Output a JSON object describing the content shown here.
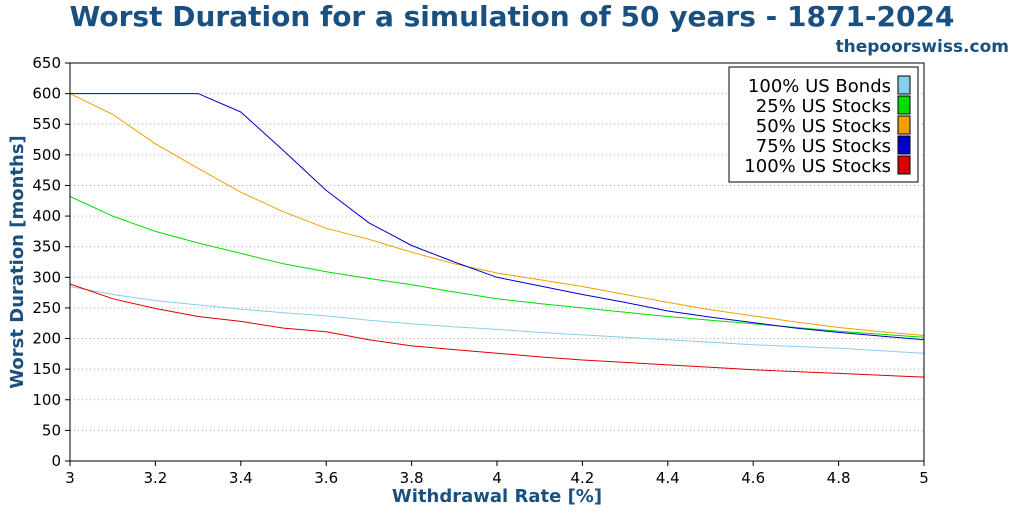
{
  "colors": {
    "title": "#1a5080",
    "grid": "#aaaaaa",
    "axis": "#000000"
  },
  "chart_data": {
    "type": "line",
    "title": "Worst Duration for a simulation of 50 years - 1871-2024",
    "subtitle": "thepoorswiss.com",
    "xlabel": "Withdrawal Rate [%]",
    "ylabel": "Worst Duration [months]",
    "xlim": [
      3,
      5
    ],
    "ylim": [
      0,
      650
    ],
    "xticks": [
      3,
      3.2,
      3.4,
      3.6,
      3.8,
      4,
      4.2,
      4.4,
      4.6,
      4.8,
      5
    ],
    "xtick_labels": [
      "3",
      "3.2",
      "3.4",
      "3.6",
      "3.8",
      "4",
      "4.2",
      "4.4",
      "4.6",
      "4.8",
      "5"
    ],
    "yticks": [
      0,
      50,
      100,
      150,
      200,
      250,
      300,
      350,
      400,
      450,
      500,
      550,
      600,
      650
    ],
    "ytick_labels": [
      "0",
      "50",
      "100",
      "150",
      "200",
      "250",
      "300",
      "350",
      "400",
      "450",
      "500",
      "550",
      "600",
      "650"
    ],
    "grid": "horizontal-dotted",
    "legend_position": "top-right",
    "x": [
      3,
      3.1,
      3.2,
      3.3,
      3.4,
      3.5,
      3.6,
      3.7,
      3.8,
      3.9,
      4,
      4.1,
      4.2,
      4.3,
      4.4,
      4.5,
      4.6,
      4.7,
      4.8,
      4.9,
      5
    ],
    "series": [
      {
        "name": "100% US Bonds",
        "color": "#87ceeb",
        "values": [
          285,
          272,
          262,
          255,
          248,
          242,
          237,
          230,
          224,
          219,
          215,
          210,
          206,
          202,
          198,
          194,
          190,
          187,
          184,
          180,
          176
        ]
      },
      {
        "name": "25% US Stocks",
        "color": "#00dd00",
        "values": [
          432,
          400,
          375,
          356,
          339,
          322,
          309,
          298,
          288,
          276,
          265,
          257,
          250,
          243,
          236,
          230,
          224,
          218,
          212,
          207,
          202
        ]
      },
      {
        "name": "50% US Stocks",
        "color": "#f0a000",
        "values": [
          600,
          566,
          518,
          478,
          439,
          407,
          380,
          362,
          341,
          322,
          307,
          296,
          285,
          272,
          259,
          247,
          237,
          227,
          218,
          211,
          205
        ]
      },
      {
        "name": "75% US Stocks",
        "color": "#0000cc",
        "values": [
          600,
          600,
          600,
          600,
          570,
          507,
          442,
          389,
          352,
          325,
          300,
          286,
          272,
          259,
          245,
          235,
          226,
          217,
          210,
          204,
          198
        ]
      },
      {
        "name": "100% US Stocks",
        "color": "#dd0000",
        "values": [
          289,
          265,
          249,
          236,
          228,
          217,
          211,
          198,
          188,
          182,
          176,
          170,
          165,
          161,
          157,
          153,
          149,
          146,
          143,
          140,
          137
        ]
      }
    ]
  }
}
